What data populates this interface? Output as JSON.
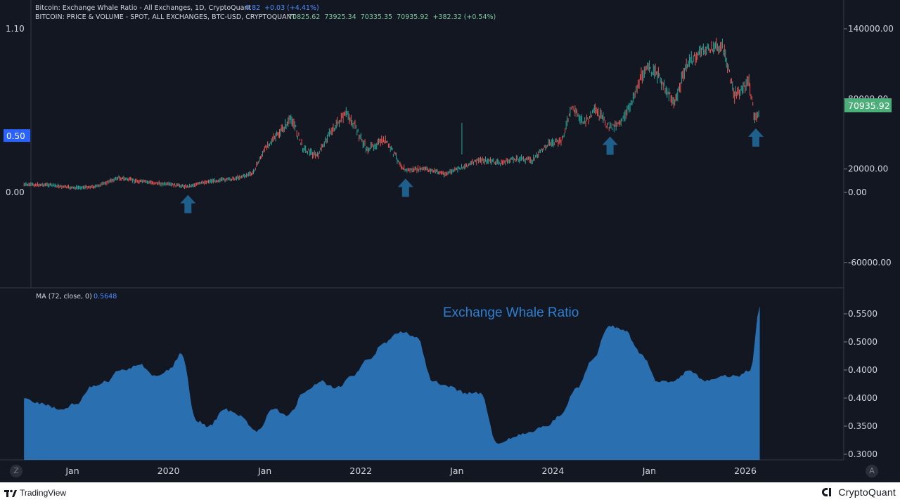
{
  "legend": {
    "line1_name": "Bitcoin: Exchange Whale Ratio - All Exchanges, 1D, CryptoQuant",
    "line1_value": "0.82",
    "line1_change": "+0.03 (+4.41%)",
    "line2_name": "BITCOIN: PRICE & VOLUME - SPOT, ALL EXCHANGES, BTC-USD, CRYPTOQUANT",
    "line2_values": "70825.62  73925.34  70335.35  70935.92  +382.32 (+0.54%)"
  },
  "ma_legend": {
    "label": "MA (72, close, 0)",
    "value": "0.5648"
  },
  "annotation": "Exchange Whale Ratio",
  "footer": {
    "left_brand": "TradingView",
    "right_brand": "CryptoQuant"
  },
  "buttons": {
    "left": "Z",
    "right": "A"
  },
  "colors": {
    "background": "#131722",
    "up": "#26a69a",
    "down": "#ef5350",
    "area": "#2a6fb0",
    "arrow": "#1f5f8b",
    "value_blue": "#2962ff",
    "price_tag": "#4caf7a"
  },
  "chart_data": [
    {
      "type": "line",
      "title": "",
      "left_axis": {
        "ticks": [
          "1.10",
          "0.50",
          "0.00"
        ],
        "tick_values": [
          1.1,
          0.5,
          0.0
        ],
        "current_label": "0.50"
      },
      "right_axis": {
        "ticks": [
          "140000.00",
          "80000.00",
          "20000.00",
          "0.00",
          "-60000.00"
        ],
        "tick_values": [
          140000,
          80000,
          20000,
          0,
          -60000
        ]
      },
      "ylim": [
        -75000,
        160000
      ],
      "current_price_label": "70935.92",
      "series": [
        {
          "values_note": "BTC-USD price by date",
          "x": [
            "2018-07-01",
            "2018-10-01",
            "2019-01-01",
            "2019-04-01",
            "2019-06-26",
            "2019-09-01",
            "2019-12-15",
            "2020-03-13",
            "2020-06-01",
            "2020-09-01",
            "2020-11-15",
            "2021-01-08",
            "2021-02-15",
            "2021-04-14",
            "2021-05-25",
            "2021-07-20",
            "2021-09-07",
            "2021-11-10",
            "2022-01-24",
            "2022-04-01",
            "2022-06-18",
            "2022-09-01",
            "2022-11-21",
            "2023-01-15",
            "2023-04-01",
            "2023-06-15",
            "2023-08-15",
            "2023-10-15",
            "2023-12-15",
            "2024-02-01",
            "2024-03-14",
            "2024-05-01",
            "2024-06-10",
            "2024-08-05",
            "2024-10-01",
            "2024-11-12",
            "2024-12-17",
            "2025-02-01",
            "2025-04-08",
            "2025-05-22",
            "2025-07-14",
            "2025-08-14",
            "2025-10-06",
            "2025-11-21",
            "2025-12-20",
            "2026-01-15",
            "2026-02-06",
            "2026-02-25"
          ],
          "values": [
            6500,
            6500,
            3800,
            5000,
            12500,
            9800,
            7200,
            5000,
            9500,
            11500,
            16000,
            40000,
            48000,
            63500,
            38000,
            31000,
            52000,
            68000,
            36500,
            45000,
            19000,
            20000,
            15800,
            21000,
            28000,
            25000,
            29000,
            27500,
            42000,
            43000,
            73000,
            59000,
            70000,
            55000,
            64000,
            88000,
            107000,
            101000,
            76000,
            109000,
            120000,
            123000,
            125000,
            84000,
            88000,
            95000,
            62000,
            70935.92
          ]
        }
      ],
      "markers": [
        {
          "label": "arrow",
          "x": "2020-03-15"
        },
        {
          "label": "arrow",
          "x": "2022-06-20"
        },
        {
          "label": "arrow",
          "x": "2024-08-05"
        },
        {
          "label": "arrow",
          "x": "2026-02-10"
        }
      ]
    },
    {
      "type": "area",
      "title": "",
      "series_label": "MA (72, close, 0)",
      "right_axis": {
        "ticks": [
          "0.5500",
          "0.5000",
          "0.4000",
          "0.4000",
          "0.3500",
          "0.3000"
        ]
      },
      "ylim": [
        0.29,
        0.57
      ],
      "series": [
        {
          "x": [
            "2018-07-01",
            "2018-09-15",
            "2018-11-15",
            "2019-01-15",
            "2019-03-15",
            "2019-05-10",
            "2019-07-01",
            "2019-09-15",
            "2019-11-15",
            "2020-01-01",
            "2020-02-20",
            "2020-04-15",
            "2020-06-01",
            "2020-08-01",
            "2020-10-01",
            "2020-12-01",
            "2021-02-01",
            "2021-04-01",
            "2021-06-01",
            "2021-08-01",
            "2021-10-01",
            "2021-12-01",
            "2022-02-01",
            "2022-04-01",
            "2022-06-01",
            "2022-08-01",
            "2022-10-01",
            "2022-12-01",
            "2023-02-01",
            "2023-04-01",
            "2023-06-01",
            "2023-08-01",
            "2023-10-01",
            "2023-12-01",
            "2024-02-01",
            "2024-04-01",
            "2024-06-01",
            "2024-08-01",
            "2024-10-01",
            "2024-12-01",
            "2025-02-01",
            "2025-04-01",
            "2025-06-01",
            "2025-08-01",
            "2025-10-01",
            "2025-12-01",
            "2026-01-20",
            "2026-02-25"
          ],
          "values": [
            0.4,
            0.39,
            0.38,
            0.39,
            0.42,
            0.43,
            0.45,
            0.46,
            0.44,
            0.45,
            0.48,
            0.36,
            0.35,
            0.38,
            0.37,
            0.34,
            0.38,
            0.37,
            0.41,
            0.43,
            0.42,
            0.44,
            0.47,
            0.5,
            0.52,
            0.51,
            0.43,
            0.42,
            0.41,
            0.41,
            0.32,
            0.33,
            0.34,
            0.35,
            0.37,
            0.42,
            0.47,
            0.53,
            0.52,
            0.48,
            0.43,
            0.43,
            0.45,
            0.43,
            0.44,
            0.44,
            0.45,
            0.5648
          ]
        }
      ]
    }
  ],
  "x_axis": {
    "ticks": [
      {
        "label": "Jan",
        "x": "2019-01-01"
      },
      {
        "label": "2020",
        "x": "2020-01-01"
      },
      {
        "label": "Jan",
        "x": "2021-01-01"
      },
      {
        "label": "2022",
        "x": "2022-01-01"
      },
      {
        "label": "Jan",
        "x": "2023-01-01"
      },
      {
        "label": "2024",
        "x": "2024-01-01"
      },
      {
        "label": "Jan",
        "x": "2025-01-01"
      },
      {
        "label": "2026",
        "x": "2026-01-01"
      }
    ]
  }
}
